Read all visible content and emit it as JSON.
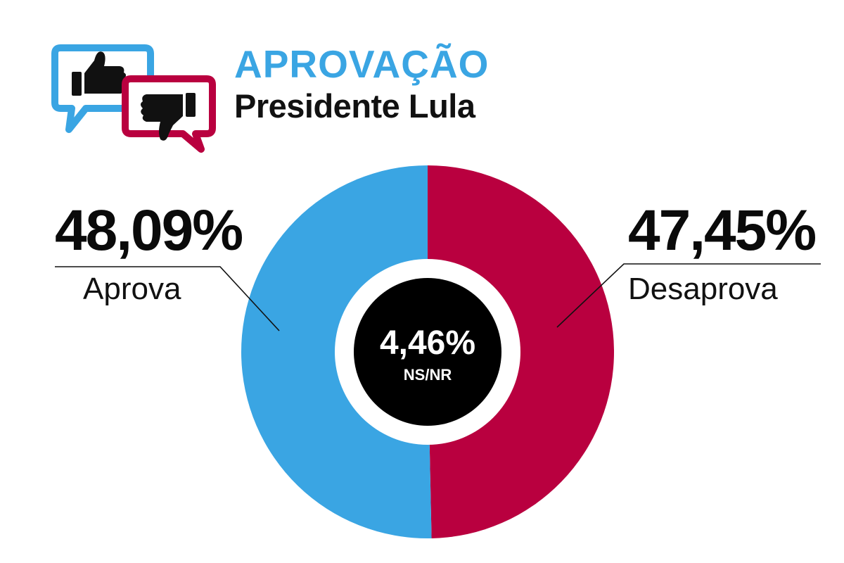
{
  "header": {
    "title": "APROVAÇÃO",
    "subtitle": "Presidente Lula"
  },
  "colors": {
    "approve": "#3AA5E3",
    "disapprove": "#B9003F",
    "center": "#000000"
  },
  "icons": [
    "thumbs-up-icon",
    "thumbs-down-icon"
  ],
  "chart_data": {
    "type": "pie",
    "title": "APROVAÇÃO",
    "subtitle": "Presidente Lula",
    "slices": [
      {
        "label": "Aprova",
        "value": 48.09,
        "value_label": "48,09%",
        "color": "#3AA5E3"
      },
      {
        "label": "Desaprova",
        "value": 47.45,
        "value_label": "47,45%",
        "color": "#B9003F"
      },
      {
        "label": "NS/NR",
        "value": 4.46,
        "value_label": "4,46%",
        "color": "#000000"
      }
    ]
  }
}
